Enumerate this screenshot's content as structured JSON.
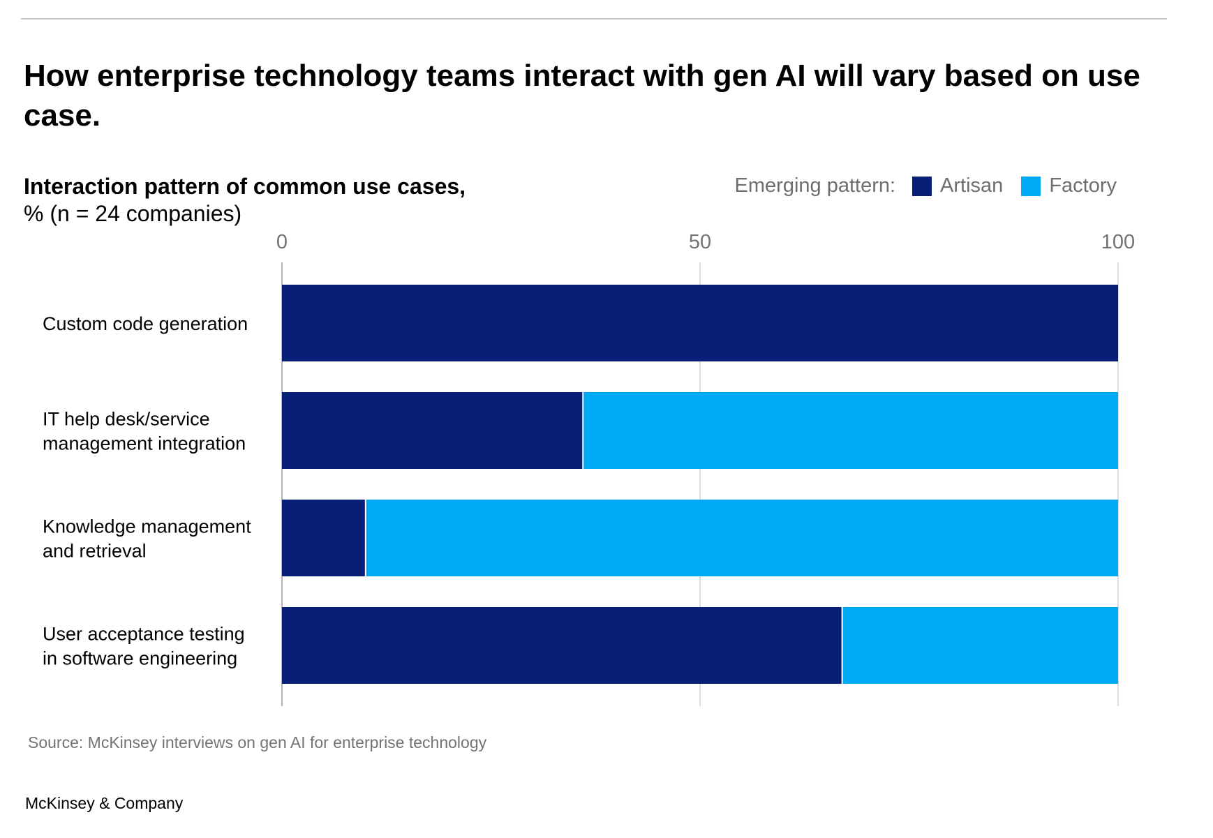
{
  "headline": "How enterprise technology teams interact with gen AI will vary based on use case.",
  "subtitle": "Interaction pattern of common use cases,",
  "subtitle_unit": "% (n = 24 companies)",
  "legend": {
    "title": "Emerging pattern:",
    "items": [
      {
        "label": "Artisan",
        "color": "#081F78"
      },
      {
        "label": "Factory",
        "color": "#00A9F4"
      }
    ]
  },
  "source": "Source: McKinsey interviews on gen AI for enterprise technology",
  "brand": "McKinsey & Company",
  "chart_data": {
    "type": "bar",
    "orientation": "horizontal",
    "stacked": true,
    "categories": [
      [
        "Custom code generation"
      ],
      [
        "IT help desk/service",
        "management integration"
      ],
      [
        "Knowledge management",
        "and retrieval"
      ],
      [
        "User acceptance testing",
        "in software engineering"
      ]
    ],
    "series": [
      {
        "name": "Artisan",
        "color": "#081F78",
        "values": [
          100,
          36,
          10,
          67
        ]
      },
      {
        "name": "Factory",
        "color": "#00A9F4",
        "values": [
          0,
          64,
          90,
          33
        ]
      }
    ],
    "xlim": [
      0,
      100
    ],
    "xticks": [
      "0",
      "50",
      "100"
    ],
    "grid": true,
    "legend_position": "top-right"
  }
}
